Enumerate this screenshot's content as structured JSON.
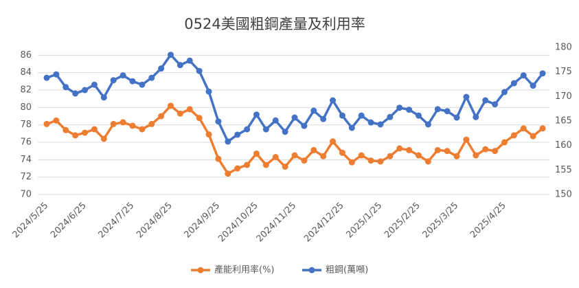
{
  "chart_data": {
    "type": "line",
    "title": "0524美國粗鋼產量及利用率",
    "categories": [
      "2024/5/25",
      null,
      null,
      null,
      "2024/6/25",
      null,
      null,
      null,
      null,
      "2024/7/25",
      null,
      null,
      null,
      "2024/8/25",
      null,
      null,
      null,
      null,
      "2024/9/25",
      null,
      null,
      null,
      "2024/10/25",
      null,
      null,
      null,
      "2024/11/25",
      null,
      null,
      null,
      null,
      "2024/12/25",
      null,
      null,
      null,
      "2025/1/25",
      null,
      null,
      null,
      "2025/2/25",
      null,
      null,
      null,
      "2025/3/25",
      null,
      null,
      null,
      null,
      "2025/4/25",
      null,
      null,
      null,
      null
    ],
    "series": [
      {
        "name": "產能利用率(%)",
        "color": "#ed7d31",
        "values": [
          78.1,
          78.5,
          77.4,
          76.8,
          77.1,
          77.5,
          76.4,
          78.1,
          78.3,
          77.9,
          77.5,
          78.1,
          79.0,
          80.2,
          79.3,
          79.8,
          78.8,
          76.9,
          74.1,
          72.4,
          73.0,
          73.4,
          74.7,
          73.4,
          74.3,
          73.2,
          74.5,
          73.9,
          75.1,
          74.4,
          76.1,
          74.8,
          73.7,
          74.5,
          73.9,
          73.8,
          74.4,
          75.3,
          75.1,
          74.5,
          73.8,
          75.1,
          75.0,
          74.4,
          76.3,
          74.5,
          75.2,
          75.0,
          76.0,
          76.8,
          77.6,
          76.7,
          77.6
        ]
      },
      {
        "name": "粗鋼(萬噸)",
        "color": "#4472c4",
        "axis": "y2",
        "values": [
          173.8,
          174.5,
          171.9,
          170.6,
          171.3,
          172.4,
          169.8,
          173.3,
          174.3,
          173.1,
          172.4,
          173.8,
          175.7,
          178.5,
          176.4,
          177.3,
          175.2,
          171.0,
          164.9,
          160.8,
          162.2,
          163.3,
          166.3,
          163.3,
          165.1,
          162.8,
          165.7,
          164.0,
          167.1,
          165.4,
          169.2,
          166.1,
          163.6,
          166.1,
          164.7,
          164.3,
          165.8,
          167.7,
          167.3,
          166.1,
          164.3,
          167.4,
          167.0,
          165.7,
          169.9,
          165.8,
          169.2,
          168.4,
          170.9,
          172.7,
          174.3,
          172.2,
          174.7
        ]
      }
    ],
    "ylim": [
      70,
      86.9
    ],
    "yticks": [
      70,
      72,
      74,
      76,
      78,
      80,
      82,
      84,
      86
    ],
    "y2lim": [
      150,
      180
    ],
    "y2ticks": [
      150,
      155,
      160,
      165,
      170,
      175,
      180
    ],
    "grid": true,
    "legend": "bottom"
  }
}
